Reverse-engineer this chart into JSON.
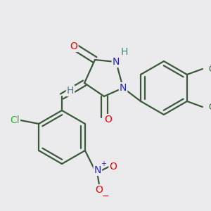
{
  "bg_color": "#ebebee",
  "bond_color": "#3a5a3a",
  "atom_colors": {
    "O": "#ee0000",
    "N": "#2222cc",
    "Cl": "#22bb22",
    "H_label": "#4a8080",
    "C": "#3a5a3a",
    "plus": "#2222cc",
    "minus": "#ee0000"
  },
  "bond_lw": 1.6,
  "font_size": 10,
  "font_size_small": 8.5
}
